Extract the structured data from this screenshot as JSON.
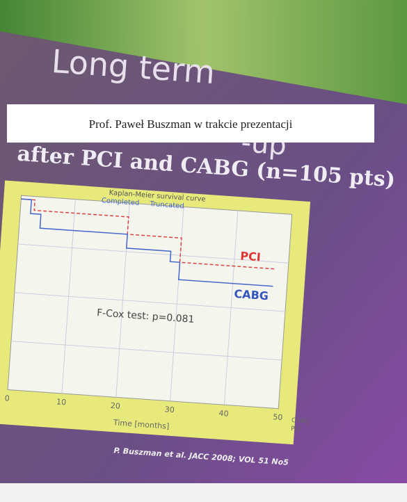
{
  "caption": "Prof. Paweł Buszman w trakcie prezentacji",
  "slide": {
    "title_line1": "Long term",
    "title_line2": "-up",
    "title_line3": "after PCI and CABG (n=105 pts)",
    "chart": {
      "title": "Kaplan-Meier survival curve",
      "legend_completed": "Completed",
      "legend_truncated": "Truncated",
      "label_pci": "PCI",
      "label_cabg": "CABG",
      "test": "F-Cox test: p=0.081",
      "x_ticks": [
        0,
        10,
        20,
        30,
        40,
        50
      ],
      "x_label": "Time [months]",
      "key_cabg": "CABG",
      "key_pci": "PCI"
    },
    "citation": "P. Buszman et al. JACC 2008; VOL 51 No5"
  }
}
